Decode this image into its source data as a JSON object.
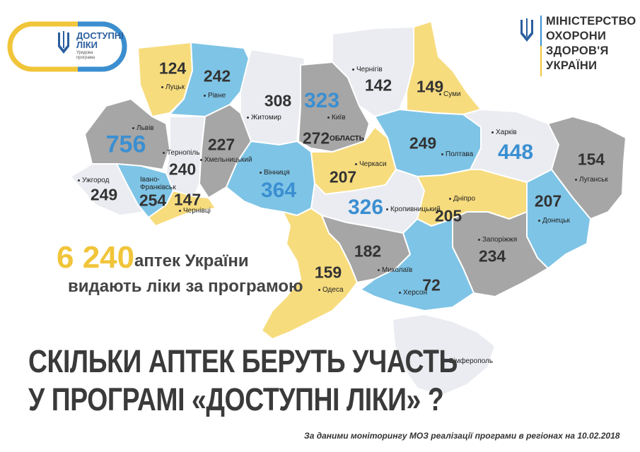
{
  "brand": {
    "program_name_line1": "ДОСТУПНІ",
    "program_name_line2": "ЛІКИ",
    "program_sub1": "Урядова",
    "program_sub2": "програма",
    "ministry_line1": "МІНІСТЕРСТВО",
    "ministry_line2": "ОХОРОНИ",
    "ministry_line3": "ЗДОРОВ'Я",
    "ministry_line4": "УКРАЇНИ"
  },
  "colors": {
    "yellow": "#f7dc7e",
    "blue": "#7ec4e6",
    "gray": "#a6a6a6",
    "light": "#eaecf1",
    "accent_yellow": "#f1c53a",
    "accent_blue": "#3b8fd1"
  },
  "summary": {
    "total": "6 240",
    "text_line1": "аптек України",
    "text_line2": "видають ліки за програмою"
  },
  "headline": {
    "line1": "СКІЛЬКИ АПТЕК БЕРУТЬ УЧАСТЬ",
    "line2": "У ПРОГРАМІ «ДОСТУПНІ ЛІКИ» ?"
  },
  "source_note": "За даними моніторингу МОЗ реалізації програми в регіонах на 10.02.2018",
  "regions": [
    {
      "city": "Луцьк",
      "value": "124"
    },
    {
      "city": "Рівне",
      "value": "242"
    },
    {
      "city": "Житомир",
      "value": "308"
    },
    {
      "city": "Київ",
      "value": "323"
    },
    {
      "city": "ОБЛАСТЬ",
      "value": "272"
    },
    {
      "city": "Чернігів",
      "value": "142"
    },
    {
      "city": "Суми",
      "value": "149"
    },
    {
      "city": "Львів",
      "value": "756"
    },
    {
      "city": "Хмельницький",
      "value": "227"
    },
    {
      "city": "Тернопіль",
      "value": "240"
    },
    {
      "city": "Вінниця",
      "value": "364"
    },
    {
      "city": "Черкаси",
      "value": "207"
    },
    {
      "city": "Полтава",
      "value": "249"
    },
    {
      "city": "Харків",
      "value": "448"
    },
    {
      "city": "Луганськ",
      "value": "154"
    },
    {
      "city": "Ужгород",
      "value": "249"
    },
    {
      "city": "Івано-Франківськ",
      "value": "254"
    },
    {
      "city": "Чернівці",
      "value": "147"
    },
    {
      "city": "Кропивницький",
      "value": "326"
    },
    {
      "city": "Дніпро",
      "value": "205"
    },
    {
      "city": "Донецьк",
      "value": "207"
    },
    {
      "city": "Запоріжжя",
      "value": "234"
    },
    {
      "city": "Миколаїв",
      "value": "182"
    },
    {
      "city": "Одеса",
      "value": "159"
    },
    {
      "city": "Херсон",
      "value": "72"
    },
    {
      "city": "Сімферополь",
      "value": ""
    }
  ]
}
